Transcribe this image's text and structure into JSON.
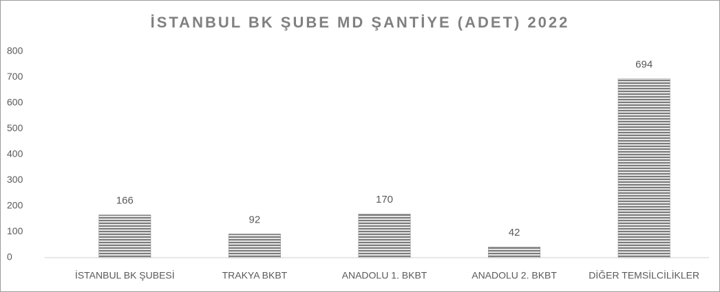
{
  "chart_data": {
    "type": "bar",
    "title": "İSTANBUL BK ŞUBE MD ŞANTİYE (ADET) 2022",
    "categories": [
      "İSTANBUL BK ŞUBESİ",
      "TRAKYA BKBT",
      "ANADOLU 1. BKBT",
      "ANADOLU 2. BKBT",
      "DİĞER TEMSİLCİLİKLER"
    ],
    "values": [
      166,
      92,
      170,
      42,
      694
    ],
    "color": "#8c8c8c",
    "ylim": [
      0,
      800
    ],
    "yticks": [
      0,
      100,
      200,
      300,
      400,
      500,
      600,
      700,
      800
    ],
    "grid": false
  }
}
